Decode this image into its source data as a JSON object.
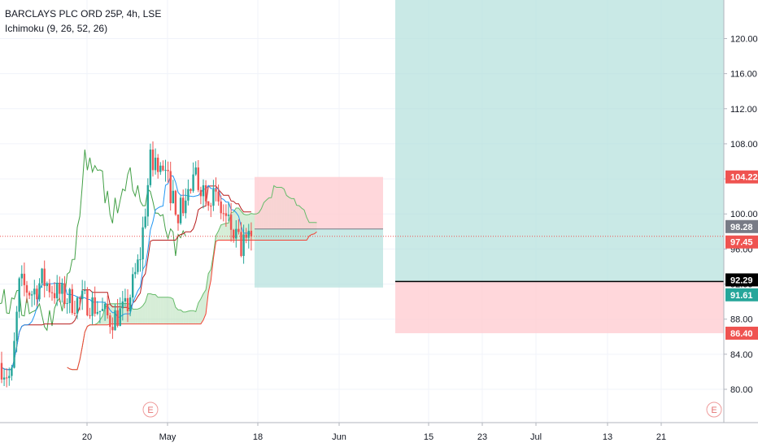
{
  "legend": {
    "symbol": "BARCLAYS PLC ORD 25P, 4h, LSE",
    "indicator": "Ichimoku (9, 26, 52, 26)"
  },
  "chart_data": {
    "type": "candlestick",
    "y_axis_ticks": [
      "80.00",
      "84.00",
      "88.00",
      "92.00",
      "96.00",
      "100.00",
      "104.00",
      "108.00",
      "112.00",
      "116.00",
      "120.00"
    ],
    "x_axis_ticks": [
      "20",
      "May",
      "18",
      "Jun",
      "15",
      "23",
      "Jul",
      "13",
      "21"
    ],
    "ylim": [
      76.2,
      124.4
    ],
    "price_tags": [
      {
        "label": "104.22",
        "value": 104.22,
        "color": "#ef5350",
        "text_color": "#ffffff"
      },
      {
        "label": "98.28",
        "value": 98.28,
        "color": "#787b86",
        "text_color": "#ffffff"
      },
      {
        "label": "97.45",
        "value": 97.45,
        "color": "#ef5350",
        "text_color": "#ffffff"
      },
      {
        "label": "92.29",
        "value": 92.29,
        "color": "#000000",
        "text_color": "#ffffff"
      },
      {
        "label": "91.61",
        "value": 91.61,
        "color": "#26a69a",
        "text_color": "#ffffff"
      },
      {
        "label": "86.40",
        "value": 86.4,
        "color": "#ef5350",
        "text_color": "#ffffff"
      }
    ],
    "earnings_markers": [
      {
        "label": "E"
      },
      {
        "label": "E"
      }
    ],
    "position_boxes": [
      {
        "name": "short-position-small",
        "entry": 98.28,
        "stop": 104.22,
        "target": 91.61
      },
      {
        "name": "long-position-large",
        "entry": 92.29,
        "stop": 86.4,
        "target": 124.4
      }
    ],
    "current_price_line": 97.45,
    "colors": {
      "up": "#26a69a",
      "down": "#ef5350",
      "conversion_line": "#2196f3",
      "base_line": "#b71c1c",
      "lagging_span": "#43a047",
      "lead_a": "#66bb6a",
      "lead_b": "#f44336",
      "cloud_bull": "#a5d6a7",
      "cloud_bear": "#ffcdd2",
      "profit_zone": "#b2dfdb",
      "loss_zone": "#ffcdd2"
    }
  }
}
